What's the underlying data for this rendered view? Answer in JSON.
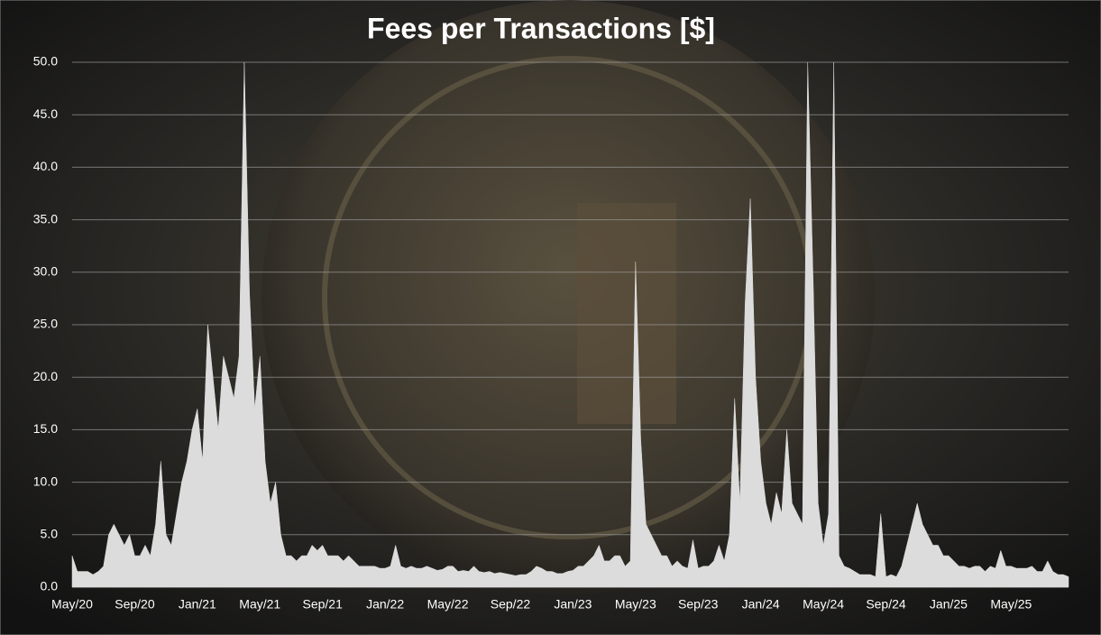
{
  "chart_data": {
    "type": "area",
    "title": "Fees per Transactions [$]",
    "categories": [
      "May/20",
      null,
      null,
      null,
      null,
      null,
      null,
      null,
      null,
      null,
      null,
      null,
      "Sep/20",
      null,
      null,
      null,
      null,
      null,
      null,
      null,
      null,
      null,
      null,
      null,
      "Jan/21",
      null,
      null,
      null,
      null,
      null,
      null,
      null,
      null,
      null,
      null,
      null,
      "May/21",
      null,
      null,
      null,
      null,
      null,
      null,
      null,
      null,
      null,
      null,
      null,
      "Sep/21",
      null,
      null,
      null,
      null,
      null,
      null,
      null,
      null,
      null,
      null,
      null,
      "Jan/22",
      null,
      null,
      null,
      null,
      null,
      null,
      null,
      null,
      null,
      null,
      null,
      "May/22",
      null,
      null,
      null,
      null,
      null,
      null,
      null,
      null,
      null,
      null,
      null,
      "Sep/22",
      null,
      null,
      null,
      null,
      null,
      null,
      null,
      null,
      null,
      null,
      null,
      "Jan/23",
      null,
      null,
      null,
      null,
      null,
      null,
      null,
      null,
      null,
      null,
      null,
      "May/23",
      null,
      null,
      null,
      null,
      null,
      null,
      null,
      null,
      null,
      null,
      null,
      "Sep/23",
      null,
      null,
      null,
      null,
      null,
      null,
      null,
      null,
      null,
      null,
      null,
      "Jan/24",
      null,
      null,
      null,
      null,
      null,
      null,
      null,
      null,
      null,
      null,
      null,
      "May/24",
      null,
      null,
      null,
      null,
      null,
      null,
      null,
      null,
      null,
      null,
      null,
      "Sep/24",
      null,
      null,
      null,
      null,
      null,
      null,
      null,
      null,
      null,
      null,
      null,
      "Jan/25",
      null,
      null,
      null,
      null,
      null,
      null,
      null,
      null,
      null,
      null,
      null,
      "May/25",
      null,
      null,
      null,
      null,
      null,
      null,
      null,
      null,
      null,
      null,
      null
    ],
    "values": [
      3,
      1.5,
      1.5,
      1.5,
      1.2,
      1.5,
      2,
      5,
      6,
      5,
      4,
      5,
      3,
      3,
      4,
      3,
      6,
      12,
      5,
      4,
      7,
      10,
      12,
      15,
      17,
      12,
      25,
      20,
      15,
      22,
      20,
      18,
      22,
      50,
      28,
      17,
      22,
      12,
      8,
      10,
      5,
      3,
      3,
      2.5,
      3,
      3,
      4,
      3.5,
      4,
      3,
      3,
      3,
      2.5,
      3,
      2.5,
      2,
      2,
      2,
      2,
      1.8,
      1.8,
      2,
      4,
      2,
      1.8,
      2,
      1.8,
      1.8,
      2,
      1.8,
      1.6,
      1.7,
      2,
      2,
      1.5,
      1.6,
      1.5,
      2,
      1.5,
      1.4,
      1.5,
      1.3,
      1.4,
      1.3,
      1.2,
      1.1,
      1.2,
      1.2,
      1.5,
      2,
      1.8,
      1.5,
      1.5,
      1.3,
      1.3,
      1.5,
      1.6,
      2,
      2,
      2.5,
      3,
      4,
      2.5,
      2.5,
      3,
      3,
      2,
      2.5,
      31,
      14,
      6,
      5,
      4,
      3,
      3,
      2,
      2.5,
      2,
      1.8,
      4.5,
      1.8,
      2,
      2,
      2.5,
      4,
      2.5,
      5,
      18,
      8,
      27,
      37,
      20,
      12,
      8,
      6,
      9,
      7,
      15,
      8,
      7,
      6,
      50,
      30,
      8,
      4,
      7,
      50,
      3,
      2,
      1.8,
      1.5,
      1.2,
      1.2,
      1.2,
      1,
      7,
      1,
      1.2,
      1,
      2,
      4,
      6,
      8,
      6,
      5,
      4,
      4,
      3,
      3,
      2.5,
      2,
      2,
      1.8,
      2,
      2,
      1.5,
      2,
      1.8,
      3.5,
      2,
      2,
      1.8,
      1.8,
      1.8,
      2,
      1.5,
      1.5,
      2.5,
      1.5,
      1.2,
      1.2,
      1
    ],
    "color": "#dcdcdc",
    "ylim": [
      0,
      50
    ],
    "yticks": [
      {
        "value": 0,
        "label": "0.0"
      },
      {
        "value": 5,
        "label": "5.0"
      },
      {
        "value": 10,
        "label": "10.0"
      },
      {
        "value": 15,
        "label": "15.0"
      },
      {
        "value": 20,
        "label": "20.0"
      },
      {
        "value": 25,
        "label": "25.0"
      },
      {
        "value": 30,
        "label": "30.0"
      },
      {
        "value": 35,
        "label": "35.0"
      },
      {
        "value": 40,
        "label": "40.0"
      },
      {
        "value": 45,
        "label": "45.0"
      },
      {
        "value": 50,
        "label": "50.0"
      }
    ],
    "grid": true
  }
}
